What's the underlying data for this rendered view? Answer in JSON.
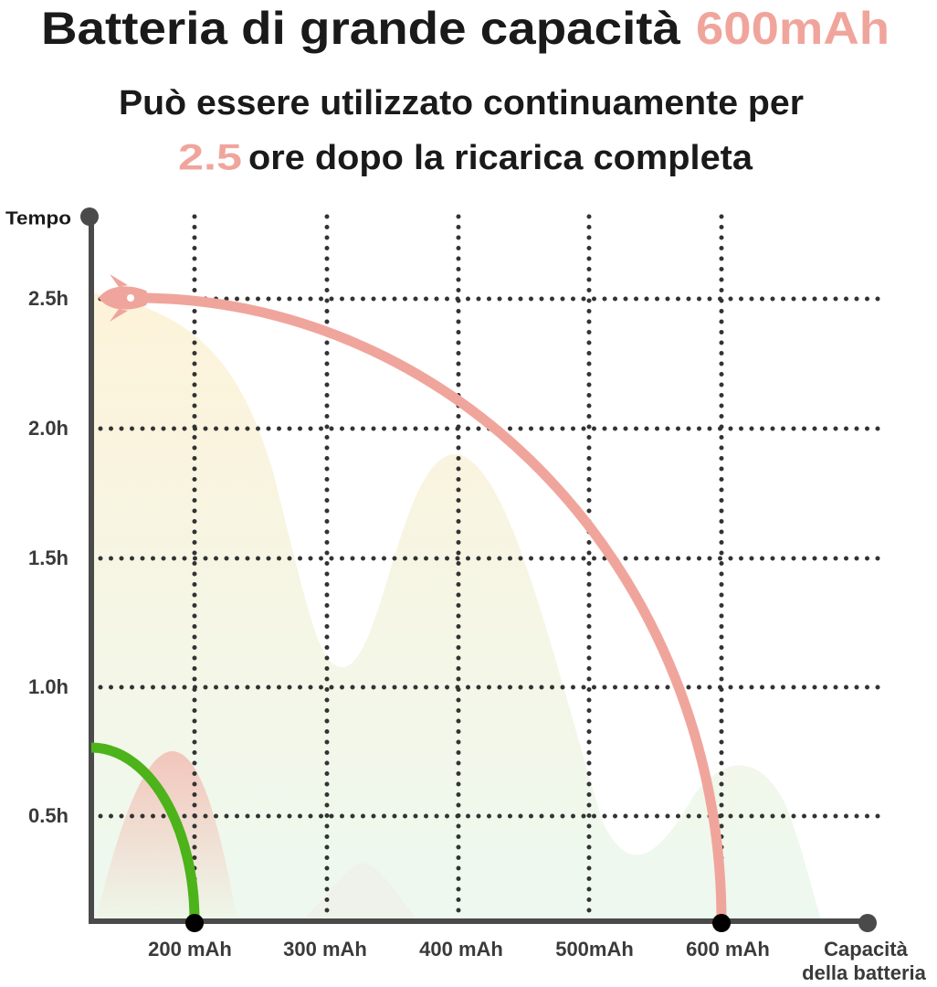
{
  "header": {
    "title": "Batteria di grande capacità",
    "title_highlight": "600mAh",
    "subtitle_line1": "Può essere utilizzato continuamente per",
    "subtitle_highlight": "2.5",
    "subtitle_line2": "ore dopo la ricarica completa"
  },
  "chart": {
    "y_axis_label": "Tempo",
    "x_axis_label_line1": "Capacità",
    "x_axis_label_line2": "della batteria",
    "y_labels": [
      "2.5h",
      "2.0h",
      "1.5h",
      "1.0h",
      "0.5h"
    ],
    "x_labels": [
      "200 mAh",
      "300 mAh",
      "400 mAh",
      "500mAh",
      "600 mAh"
    ]
  }
}
